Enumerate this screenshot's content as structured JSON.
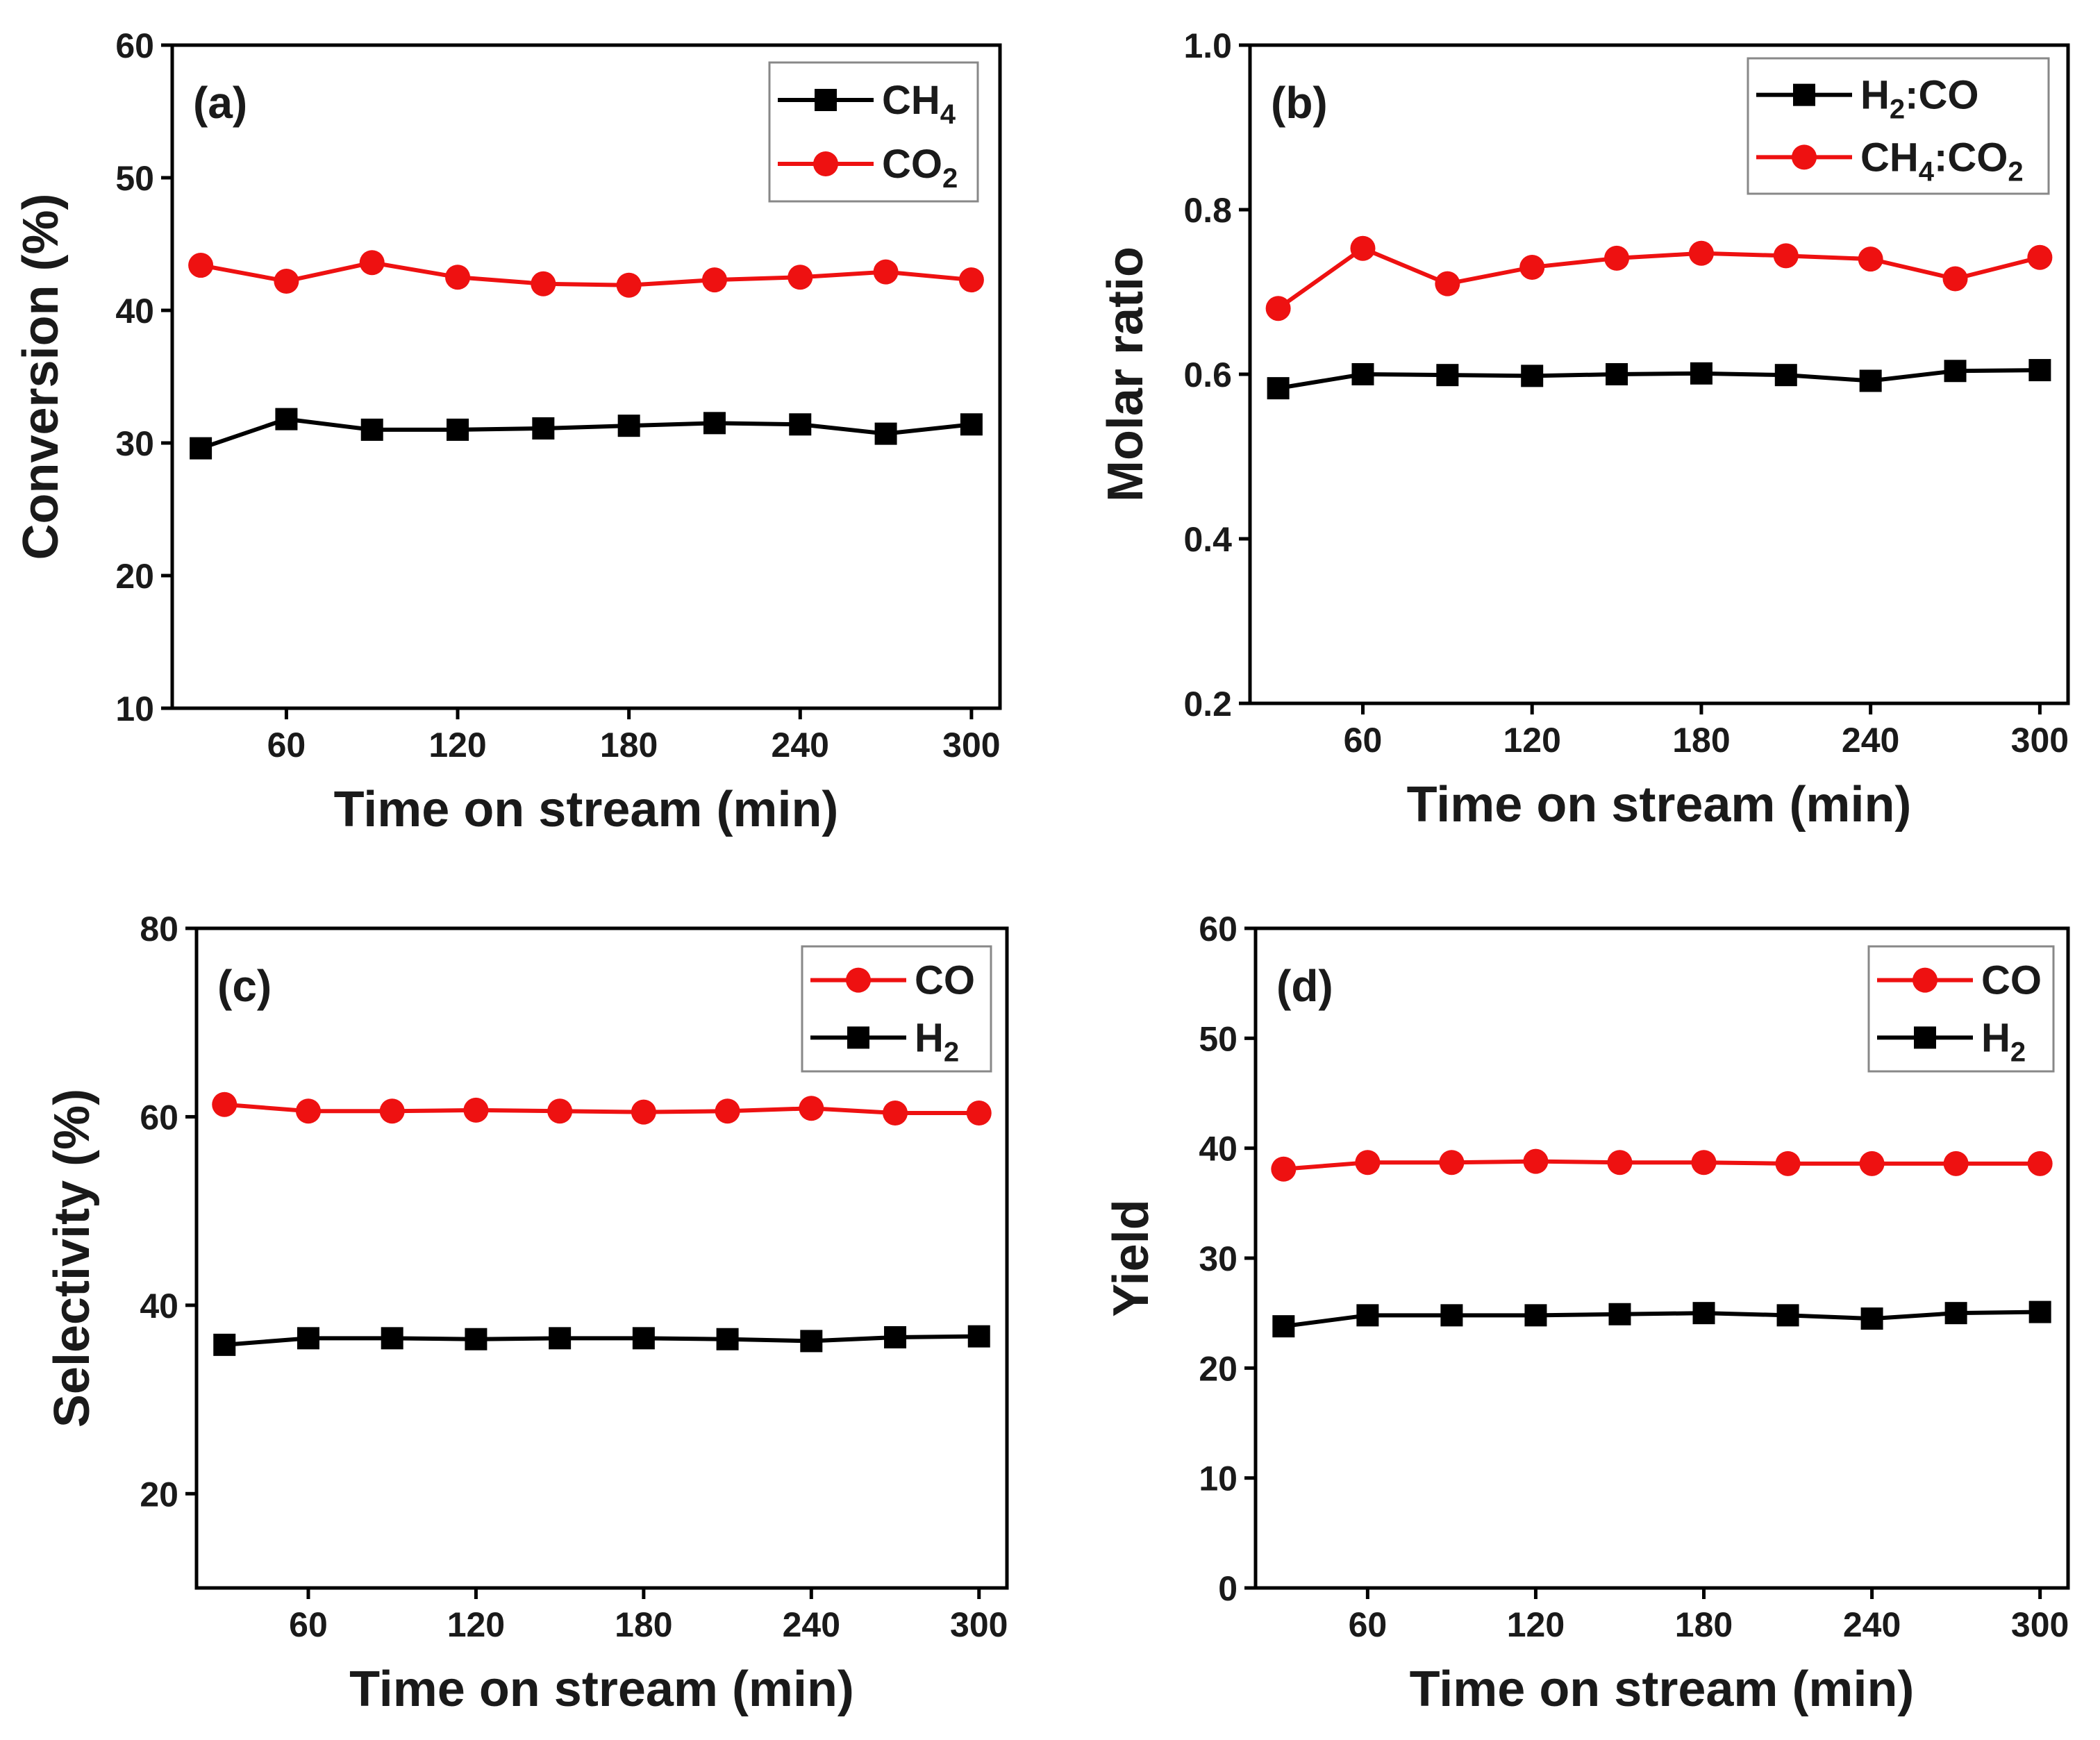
{
  "chart_data": [
    {
      "type": "line",
      "panel": "(a)",
      "xlabel": "Time on stream (min)",
      "ylabel": "Conversion (%)",
      "xlim": [
        20,
        310
      ],
      "ylim": [
        10,
        60
      ],
      "xticks": [
        60,
        120,
        180,
        240,
        300
      ],
      "yticks": [
        10,
        20,
        30,
        40,
        50,
        60
      ],
      "x": [
        30,
        60,
        90,
        120,
        150,
        180,
        210,
        240,
        270,
        300
      ],
      "legend_position": "top-right",
      "series": [
        {
          "name": "CH4",
          "sub": "4",
          "base": "CH",
          "suffix": "",
          "color": "#000000",
          "marker": "square",
          "values": [
            29.6,
            31.8,
            31.0,
            31.0,
            31.1,
            31.3,
            31.5,
            31.4,
            30.7,
            31.4
          ]
        },
        {
          "name": "CO2",
          "sub": "2",
          "base": "CO",
          "suffix": "",
          "color": "#ee1111",
          "marker": "circle",
          "values": [
            43.4,
            42.2,
            43.6,
            42.5,
            42.0,
            41.9,
            42.3,
            42.5,
            42.9,
            42.3
          ]
        }
      ]
    },
    {
      "type": "line",
      "panel": "(b)",
      "xlabel": "Time on stream (min)",
      "ylabel": "Molar ratio",
      "xlim": [
        20,
        310
      ],
      "ylim": [
        0.2,
        1.0
      ],
      "xticks": [
        60,
        120,
        180,
        240,
        300
      ],
      "yticks": [
        0.2,
        0.4,
        0.6,
        0.8,
        1.0
      ],
      "x": [
        30,
        60,
        90,
        120,
        150,
        180,
        210,
        240,
        270,
        300
      ],
      "legend_position": "top-right",
      "series": [
        {
          "name": "H2:CO",
          "base": "H",
          "sub": "2",
          "suffix": ":CO",
          "color": "#000000",
          "marker": "square",
          "values": [
            0.583,
            0.6,
            0.599,
            0.598,
            0.6,
            0.601,
            0.599,
            0.592,
            0.604,
            0.605
          ]
        },
        {
          "name": "CH4:CO2",
          "base": "CH",
          "sub": "4",
          "suffix": ":CO",
          "sub2": "2",
          "color": "#ee1111",
          "marker": "circle",
          "values": [
            0.68,
            0.753,
            0.71,
            0.73,
            0.741,
            0.747,
            0.744,
            0.74,
            0.716,
            0.742
          ]
        }
      ]
    },
    {
      "type": "line",
      "panel": "(c)",
      "xlabel": "Time on stream (min)",
      "ylabel": "Selectivity (%)",
      "xlim": [
        20,
        310
      ],
      "ylim": [
        10,
        80
      ],
      "xticks": [
        60,
        120,
        180,
        240,
        300
      ],
      "yticks": [
        20,
        40,
        60,
        80
      ],
      "x": [
        30,
        60,
        90,
        120,
        150,
        180,
        210,
        240,
        270,
        300
      ],
      "legend_position": "top-right",
      "series": [
        {
          "name": "CO",
          "base": "CO",
          "sub": "",
          "suffix": "",
          "color": "#ee1111",
          "marker": "circle",
          "values": [
            61.3,
            60.6,
            60.6,
            60.7,
            60.6,
            60.5,
            60.6,
            60.9,
            60.4,
            60.4
          ]
        },
        {
          "name": "H2",
          "base": "H",
          "sub": "2",
          "suffix": "",
          "color": "#000000",
          "marker": "square",
          "values": [
            35.8,
            36.5,
            36.5,
            36.4,
            36.5,
            36.5,
            36.4,
            36.2,
            36.6,
            36.7
          ]
        }
      ]
    },
    {
      "type": "line",
      "panel": "(d)",
      "xlabel": "Time on stream (min)",
      "ylabel": "Yield",
      "xlim": [
        20,
        310
      ],
      "ylim": [
        0,
        60
      ],
      "xticks": [
        60,
        120,
        180,
        240,
        300
      ],
      "yticks": [
        0,
        10,
        20,
        30,
        40,
        50,
        60
      ],
      "x": [
        30,
        60,
        90,
        120,
        150,
        180,
        210,
        240,
        270,
        300
      ],
      "legend_position": "top-right",
      "series": [
        {
          "name": "CO",
          "base": "CO",
          "sub": "",
          "suffix": "",
          "color": "#ee1111",
          "marker": "circle",
          "values": [
            38.1,
            38.7,
            38.7,
            38.8,
            38.7,
            38.7,
            38.6,
            38.6,
            38.6,
            38.6
          ]
        },
        {
          "name": "H2",
          "base": "H",
          "sub": "2",
          "suffix": "",
          "color": "#000000",
          "marker": "square",
          "values": [
            23.8,
            24.8,
            24.8,
            24.8,
            24.9,
            25.0,
            24.8,
            24.5,
            25.0,
            25.1
          ]
        }
      ]
    }
  ]
}
